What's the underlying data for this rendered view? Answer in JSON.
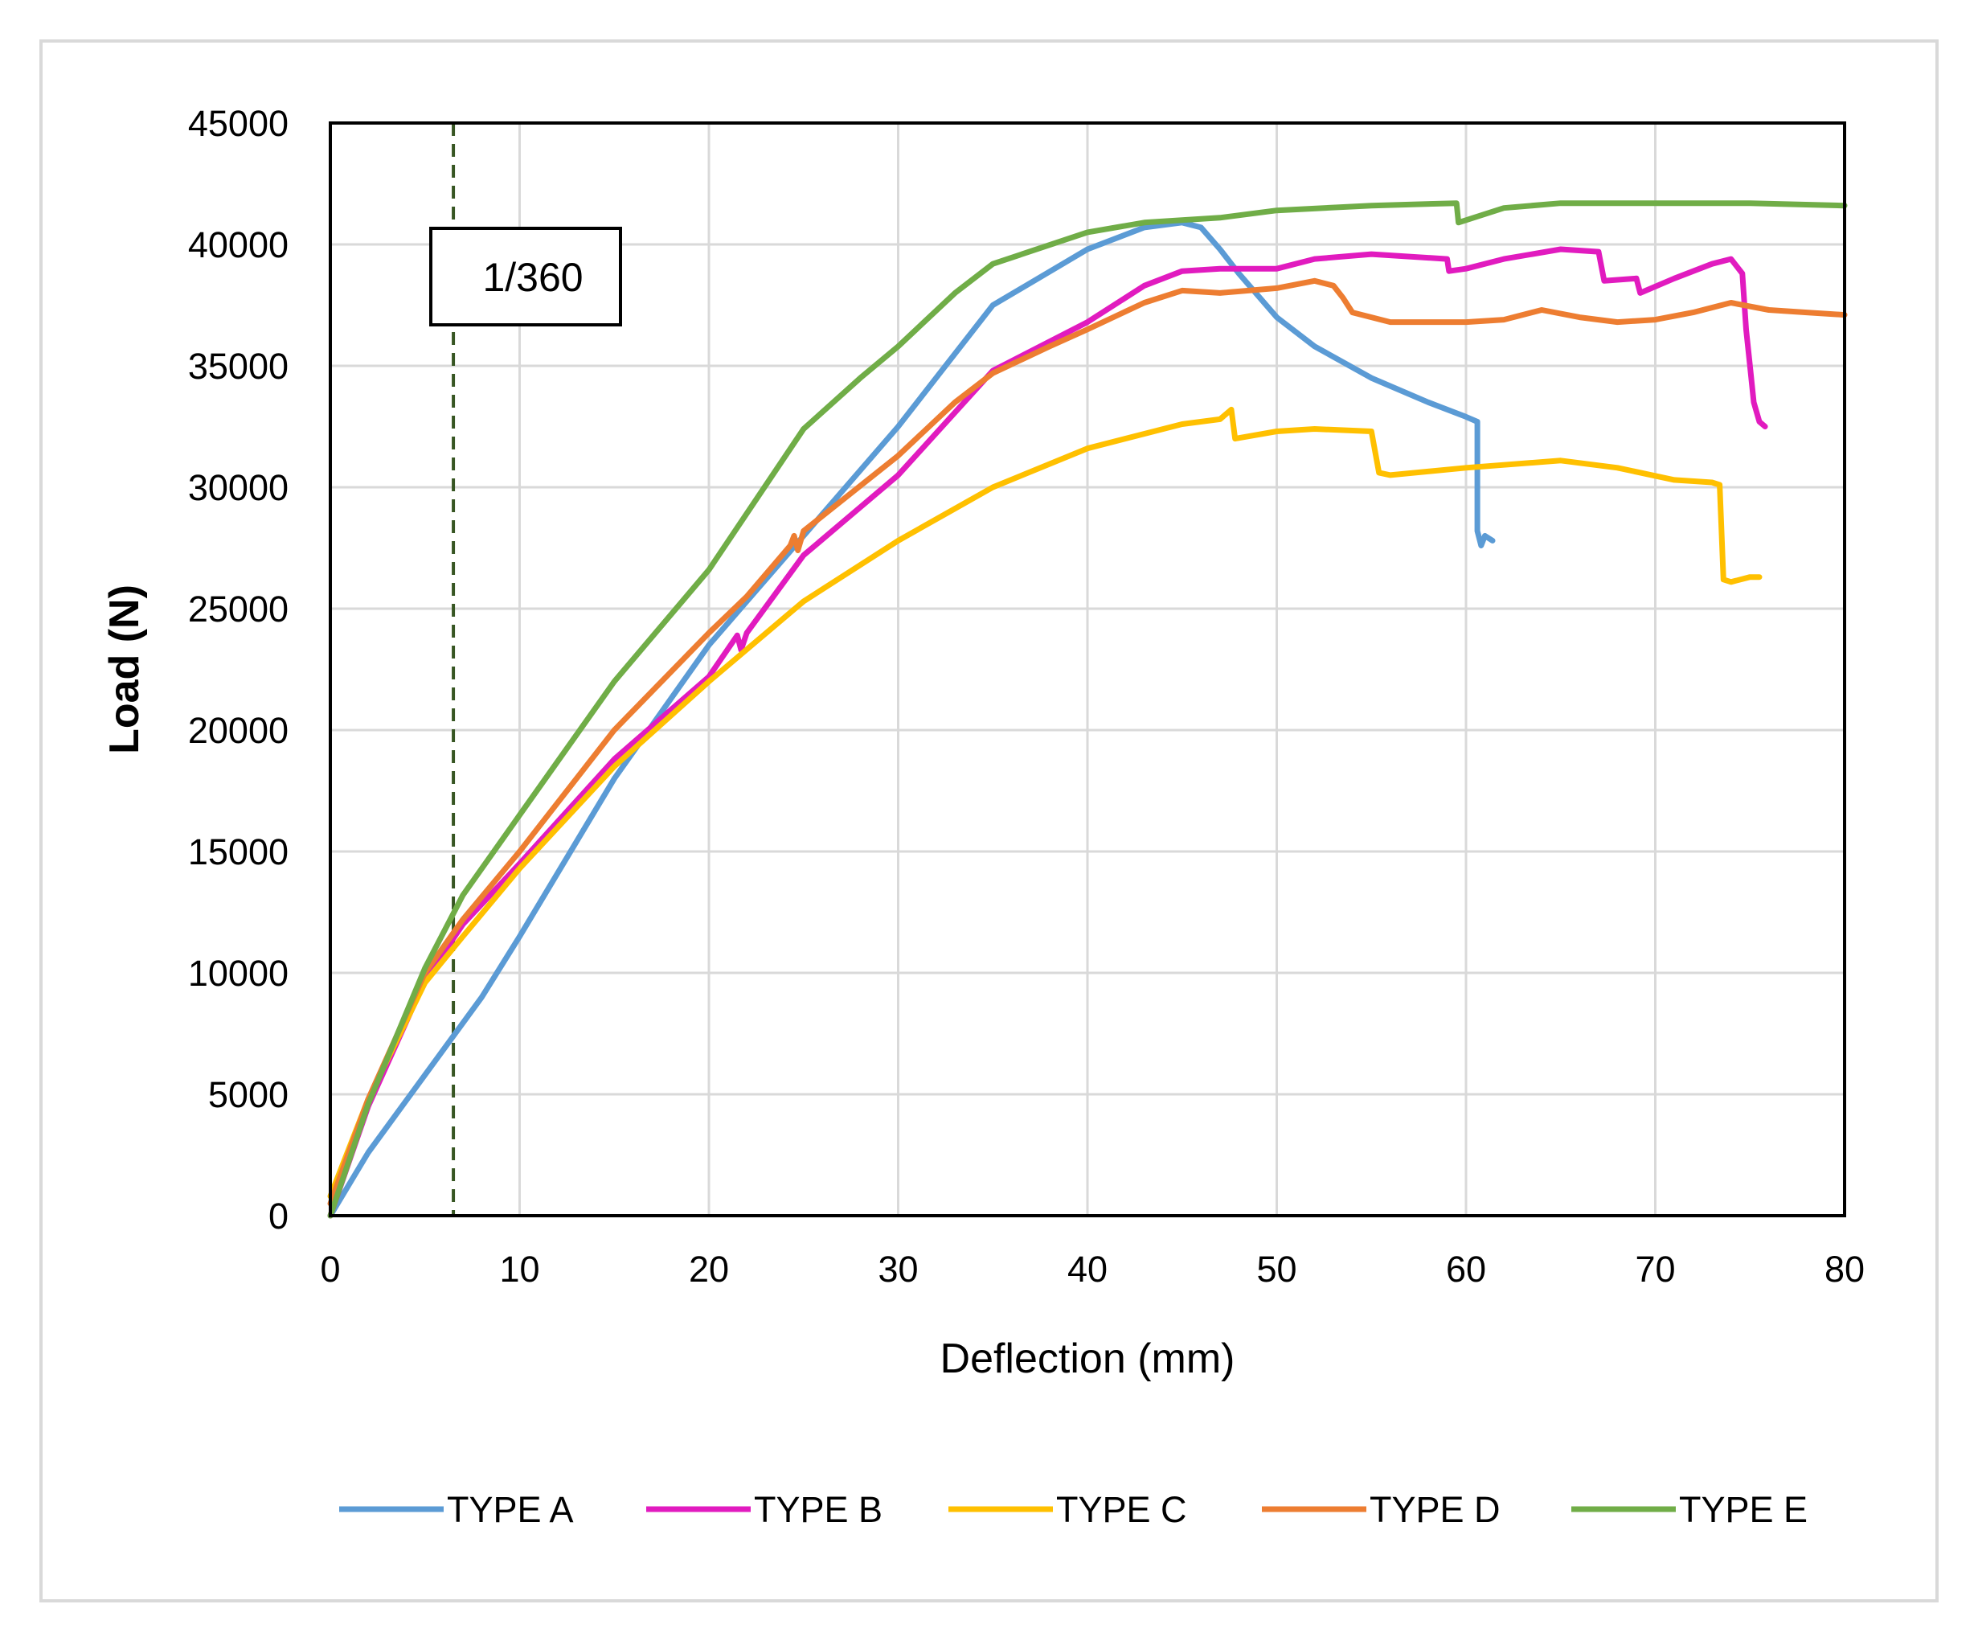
{
  "chart_data": {
    "type": "line",
    "title": "",
    "xlabel": "Deflection (mm)",
    "ylabel": "Load (N)",
    "xlim": [
      0,
      80
    ],
    "ylim": [
      0,
      45000
    ],
    "xticks": [
      0,
      10,
      20,
      30,
      40,
      50,
      60,
      70,
      80
    ],
    "yticks": [
      0,
      5000,
      10000,
      15000,
      20000,
      25000,
      30000,
      35000,
      40000,
      45000
    ],
    "grid": true,
    "legend_position": "bottom",
    "annotation": {
      "label": "1/360",
      "x": 6.5,
      "line_color": "#375623"
    },
    "series": [
      {
        "name": "TYPE A",
        "color": "#5b9bd5",
        "points": [
          [
            0,
            0
          ],
          [
            2,
            2600
          ],
          [
            5,
            5800
          ],
          [
            8,
            9000
          ],
          [
            10,
            11500
          ],
          [
            15,
            18000
          ],
          [
            20,
            23500
          ],
          [
            25,
            28000
          ],
          [
            30,
            32500
          ],
          [
            35,
            37500
          ],
          [
            40,
            39800
          ],
          [
            43,
            40700
          ],
          [
            45,
            40900
          ],
          [
            46,
            40700
          ],
          [
            47,
            39800
          ],
          [
            48,
            38800
          ],
          [
            50,
            37000
          ],
          [
            52,
            35800
          ],
          [
            55,
            34500
          ],
          [
            58,
            33500
          ],
          [
            60,
            32900
          ],
          [
            60.6,
            32700
          ],
          [
            60.6,
            28200
          ],
          [
            60.8,
            27600
          ],
          [
            61,
            28000
          ],
          [
            61.4,
            27800
          ]
        ]
      },
      {
        "name": "TYPE B",
        "color": "#e11bbf",
        "points": [
          [
            0,
            0
          ],
          [
            2,
            4500
          ],
          [
            5,
            9700
          ],
          [
            7,
            12000
          ],
          [
            10,
            14500
          ],
          [
            15,
            18800
          ],
          [
            20,
            22200
          ],
          [
            21.5,
            23900
          ],
          [
            21.7,
            23300
          ],
          [
            22,
            24000
          ],
          [
            25,
            27200
          ],
          [
            30,
            30500
          ],
          [
            35,
            34800
          ],
          [
            40,
            36800
          ],
          [
            43,
            38300
          ],
          [
            45,
            38900
          ],
          [
            47,
            39000
          ],
          [
            50,
            39000
          ],
          [
            52,
            39400
          ],
          [
            55,
            39600
          ],
          [
            57,
            39500
          ],
          [
            59,
            39400
          ],
          [
            59.1,
            38900
          ],
          [
            60,
            39000
          ],
          [
            62,
            39400
          ],
          [
            65,
            39800
          ],
          [
            67,
            39700
          ],
          [
            67.3,
            38500
          ],
          [
            69,
            38600
          ],
          [
            69.2,
            38000
          ],
          [
            71,
            38600
          ],
          [
            73,
            39200
          ],
          [
            74,
            39400
          ],
          [
            74.6,
            38800
          ],
          [
            74.8,
            36500
          ],
          [
            75,
            35000
          ],
          [
            75.2,
            33500
          ],
          [
            75.5,
            32700
          ],
          [
            75.8,
            32500
          ]
        ]
      },
      {
        "name": "TYPE C",
        "color": "#ffc000",
        "points": [
          [
            0,
            800
          ],
          [
            2,
            4800
          ],
          [
            5,
            9600
          ],
          [
            7,
            11500
          ],
          [
            10,
            14300
          ],
          [
            15,
            18500
          ],
          [
            20,
            22000
          ],
          [
            25,
            25300
          ],
          [
            30,
            27800
          ],
          [
            35,
            30000
          ],
          [
            40,
            31600
          ],
          [
            45,
            32600
          ],
          [
            47,
            32800
          ],
          [
            47.6,
            33200
          ],
          [
            47.8,
            32000
          ],
          [
            50,
            32300
          ],
          [
            52,
            32400
          ],
          [
            55,
            32300
          ],
          [
            55.4,
            30600
          ],
          [
            56,
            30500
          ],
          [
            60,
            30800
          ],
          [
            65,
            31100
          ],
          [
            68,
            30800
          ],
          [
            71,
            30300
          ],
          [
            73,
            30200
          ],
          [
            73.4,
            30100
          ],
          [
            73.6,
            26200
          ],
          [
            74,
            26100
          ],
          [
            75,
            26300
          ],
          [
            75.5,
            26300
          ]
        ]
      },
      {
        "name": "TYPE D",
        "color": "#ed7d31",
        "points": [
          [
            0,
            500
          ],
          [
            2,
            4800
          ],
          [
            5,
            10000
          ],
          [
            7,
            12200
          ],
          [
            10,
            15000
          ],
          [
            15,
            20000
          ],
          [
            20,
            24000
          ],
          [
            22,
            25500
          ],
          [
            24.3,
            27600
          ],
          [
            24.5,
            28000
          ],
          [
            24.7,
            27400
          ],
          [
            25,
            28200
          ],
          [
            30,
            31300
          ],
          [
            33,
            33500
          ],
          [
            35,
            34700
          ],
          [
            38,
            35800
          ],
          [
            40,
            36500
          ],
          [
            43,
            37600
          ],
          [
            45,
            38100
          ],
          [
            47,
            38000
          ],
          [
            50,
            38200
          ],
          [
            52,
            38500
          ],
          [
            53,
            38300
          ],
          [
            53.5,
            37800
          ],
          [
            54,
            37200
          ],
          [
            55,
            37000
          ],
          [
            56,
            36800
          ],
          [
            60,
            36800
          ],
          [
            62,
            36900
          ],
          [
            64,
            37300
          ],
          [
            66,
            37000
          ],
          [
            68,
            36800
          ],
          [
            70,
            36900
          ],
          [
            72,
            37200
          ],
          [
            74,
            37600
          ],
          [
            76,
            37300
          ],
          [
            78,
            37200
          ],
          [
            80,
            37100
          ]
        ]
      },
      {
        "name": "TYPE E",
        "color": "#70ad47",
        "points": [
          [
            0,
            0
          ],
          [
            2,
            4600
          ],
          [
            5,
            10200
          ],
          [
            7,
            13200
          ],
          [
            10,
            16500
          ],
          [
            15,
            22000
          ],
          [
            20,
            26600
          ],
          [
            25,
            32400
          ],
          [
            28,
            34500
          ],
          [
            30,
            35800
          ],
          [
            33,
            38000
          ],
          [
            35,
            39200
          ],
          [
            40,
            40500
          ],
          [
            43,
            40900
          ],
          [
            45,
            41000
          ],
          [
            47,
            41100
          ],
          [
            50,
            41400
          ],
          [
            55,
            41600
          ],
          [
            59.5,
            41700
          ],
          [
            59.6,
            40900
          ],
          [
            60,
            41000
          ],
          [
            62,
            41500
          ],
          [
            65,
            41700
          ],
          [
            70,
            41700
          ],
          [
            75,
            41700
          ],
          [
            80,
            41600
          ]
        ]
      }
    ]
  }
}
